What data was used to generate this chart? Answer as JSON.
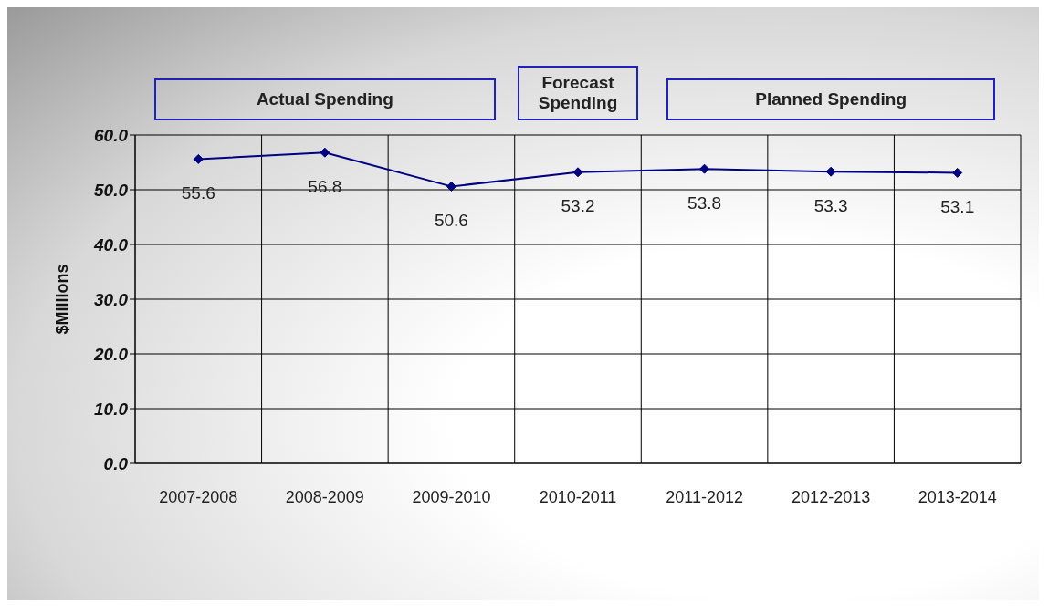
{
  "chart_data": {
    "type": "line",
    "ylabel": "$Millions",
    "categories": [
      "2007-2008",
      "2008-2009",
      "2009-2010",
      "2010-2011",
      "2011-2012",
      "2012-2013",
      "2013-2014"
    ],
    "series": [
      {
        "color": "#000080",
        "values": [
          55.6,
          56.8,
          50.6,
          53.2,
          53.8,
          53.3,
          53.1
        ]
      }
    ],
    "ylim": [
      0,
      60
    ],
    "yticks": [
      {
        "value": 0,
        "label": "0.0"
      },
      {
        "value": 10,
        "label": "10.0"
      },
      {
        "value": 20,
        "label": "20.0"
      },
      {
        "value": 30,
        "label": "30.0"
      },
      {
        "value": 40,
        "label": "40.0"
      },
      {
        "value": 50,
        "label": "50.0"
      },
      {
        "value": 60,
        "label": "60.0"
      }
    ],
    "grid": true,
    "marker": "diamond",
    "line_style": "solid",
    "data_labels": true,
    "annotations": [
      "Actual Spending",
      "Forecast Spending",
      "Planned Spending"
    ]
  }
}
